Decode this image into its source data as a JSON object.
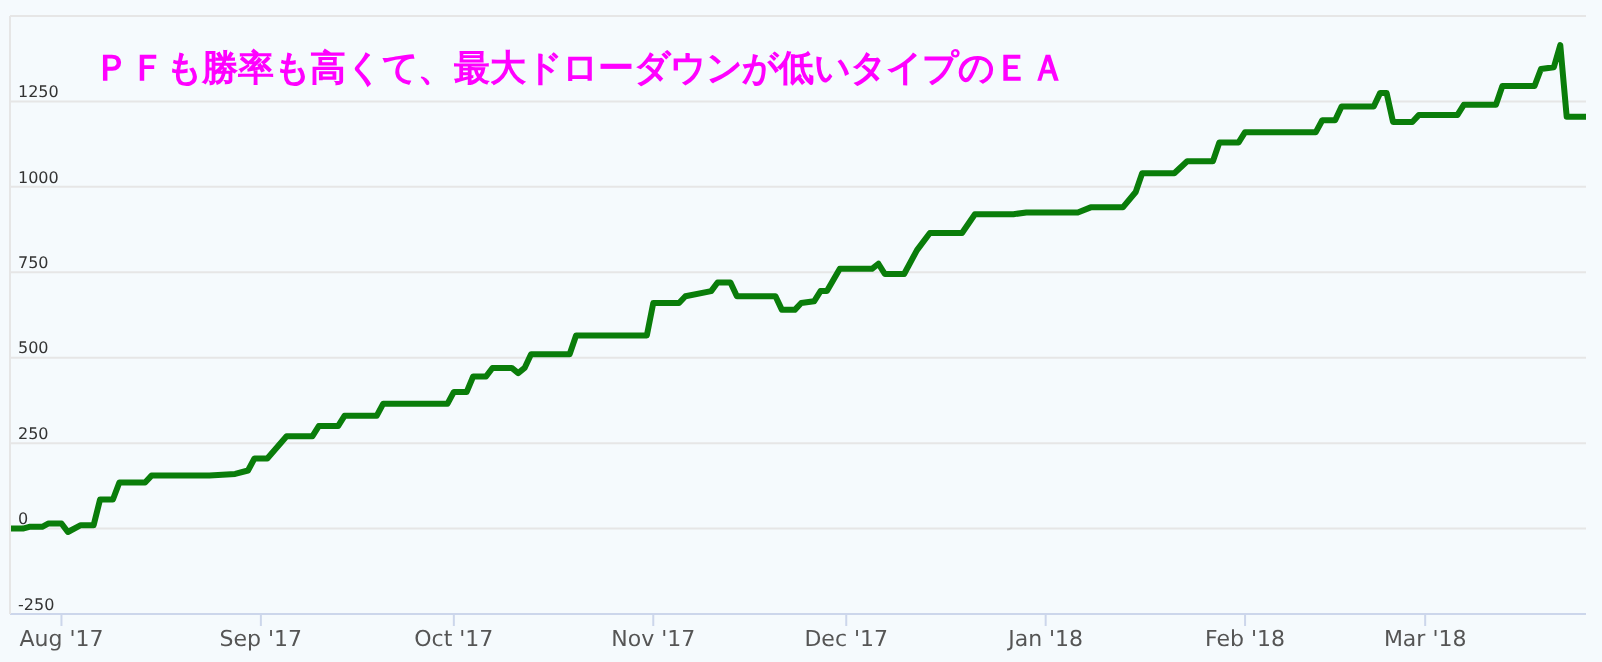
{
  "chart_data": {
    "type": "line",
    "title": "ＰＦも勝率も高くて、最大ドローダウンが低いタイプのＥＡ",
    "x": [
      "2017-07-24",
      "2017-07-26",
      "2017-07-27",
      "2017-07-29",
      "2017-07-30",
      "2017-08-01",
      "2017-08-02",
      "2017-08-04",
      "2017-08-06",
      "2017-08-07",
      "2017-08-09",
      "2017-08-10",
      "2017-08-14",
      "2017-08-15",
      "2017-08-24",
      "2017-08-28",
      "2017-08-30",
      "2017-08-31",
      "2017-09-02",
      "2017-09-05",
      "2017-09-09",
      "2017-09-10",
      "2017-09-13",
      "2017-09-14",
      "2017-09-19",
      "2017-09-20",
      "2017-09-30",
      "2017-10-01",
      "2017-10-03",
      "2017-10-04",
      "2017-10-06",
      "2017-10-07",
      "2017-10-10",
      "2017-10-11",
      "2017-10-12",
      "2017-10-13",
      "2017-10-19",
      "2017-10-20",
      "2017-10-31",
      "2017-11-01",
      "2017-11-05",
      "2017-11-06",
      "2017-11-10",
      "2017-11-11",
      "2017-11-13",
      "2017-11-14",
      "2017-11-20",
      "2017-11-21",
      "2017-11-23",
      "2017-11-24",
      "2017-11-26",
      "2017-11-27",
      "2017-11-28",
      "2017-11-30",
      "2017-12-05",
      "2017-12-06",
      "2017-12-07",
      "2017-12-10",
      "2017-12-12",
      "2017-12-14",
      "2017-12-19",
      "2017-12-21",
      "2017-12-27",
      "2017-12-29",
      "2018-01-06",
      "2018-01-08",
      "2018-01-13",
      "2018-01-15",
      "2018-01-16",
      "2018-01-21",
      "2018-01-23",
      "2018-01-27",
      "2018-01-28",
      "2018-01-31",
      "2018-02-01",
      "2018-02-12",
      "2018-02-13",
      "2018-02-15",
      "2018-02-16",
      "2018-02-21",
      "2018-02-22",
      "2018-02-23",
      "2018-02-24",
      "2018-02-27",
      "2018-02-28",
      "2018-03-06",
      "2018-03-07",
      "2018-03-12",
      "2018-03-13",
      "2018-03-18",
      "2018-03-19",
      "2018-03-21",
      "2018-03-22",
      "2018-03-23",
      "2018-03-26"
    ],
    "series": [
      {
        "color": "#0a7d0a",
        "values": [
          0,
          0,
          5,
          5,
          15,
          15,
          -10,
          10,
          10,
          85,
          85,
          135,
          135,
          155,
          155,
          160,
          170,
          205,
          205,
          270,
          270,
          300,
          300,
          330,
          330,
          365,
          365,
          400,
          400,
          445,
          445,
          470,
          470,
          455,
          470,
          510,
          510,
          565,
          565,
          660,
          660,
          680,
          695,
          720,
          720,
          680,
          680,
          640,
          640,
          660,
          665,
          695,
          695,
          760,
          760,
          775,
          745,
          745,
          815,
          865,
          865,
          920,
          920,
          925,
          925,
          940,
          940,
          985,
          1040,
          1040,
          1075,
          1075,
          1130,
          1130,
          1160,
          1160,
          1195,
          1195,
          1235,
          1235,
          1275,
          1275,
          1190,
          1190,
          1210,
          1210,
          1240,
          1240,
          1295,
          1295,
          1345,
          1350,
          1415,
          1205,
          1205
        ]
      }
    ],
    "xlim": [
      "2017-07-24",
      "2018-03-26"
    ],
    "xticks": [
      {
        "value": "2017-08-01",
        "label": "Aug '17"
      },
      {
        "value": "2017-09-01",
        "label": "Sep '17"
      },
      {
        "value": "2017-10-01",
        "label": "Oct '17"
      },
      {
        "value": "2017-11-01",
        "label": "Nov '17"
      },
      {
        "value": "2017-12-01",
        "label": "Dec '17"
      },
      {
        "value": "2018-01-01",
        "label": "Jan '18"
      },
      {
        "value": "2018-02-01",
        "label": "Feb '18"
      },
      {
        "value": "2018-03-01",
        "label": "Mar '18"
      }
    ],
    "ylim": [
      -250,
      1500
    ],
    "yticks": [
      -250,
      0,
      250,
      500,
      750,
      1000,
      1250,
      {
        "value": 1500,
        "label": null
      }
    ],
    "grid": "y",
    "legend": false,
    "marker": "none",
    "line_style": "solid"
  }
}
